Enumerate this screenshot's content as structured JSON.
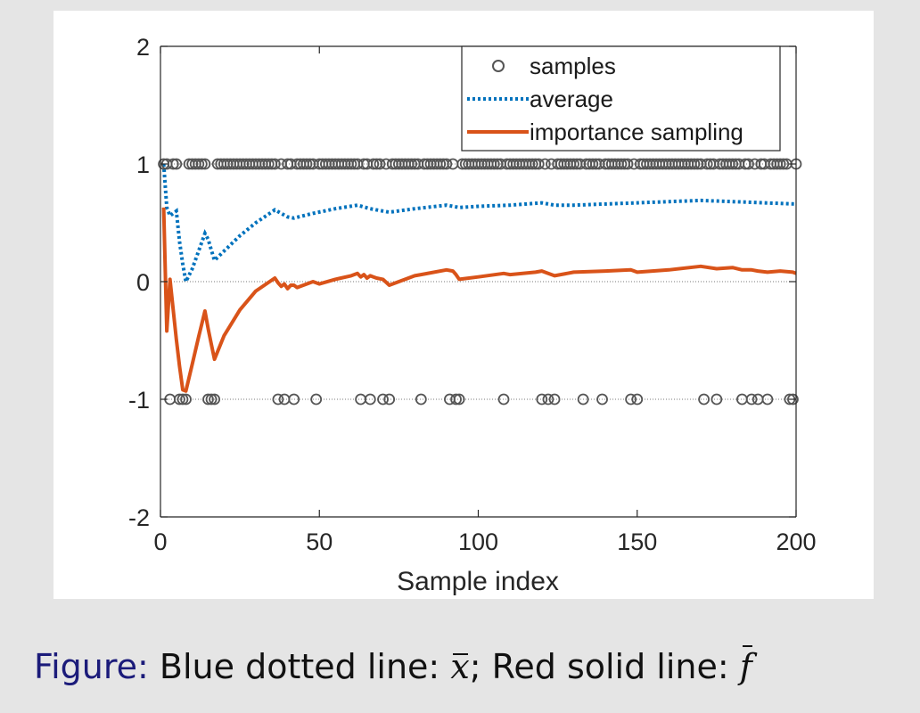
{
  "caption": {
    "prefix": "Figure:",
    "part1": "Blue dotted line:",
    "sym1": "x",
    "sep": ";",
    "part2": "Red solid line:",
    "sym2": "f"
  },
  "colors": {
    "samples": "#555555",
    "average": "#0072BD",
    "importance": "#D95319",
    "panel": "#ffffff",
    "background": "#e5e5e5",
    "caption_prefix": "#1b1b7a"
  },
  "chart_data": {
    "type": "line",
    "title": "",
    "xlabel": "Sample index",
    "ylabel": "",
    "xlim": [
      0,
      200
    ],
    "ylim": [
      -2,
      2
    ],
    "xticks": [
      0,
      50,
      100,
      150,
      200
    ],
    "yticks": [
      -2,
      -1,
      0,
      1,
      2
    ],
    "grid": false,
    "reference_lines_y": [
      -1,
      0,
      1
    ],
    "legend_position": "top-right",
    "legend": [
      "samples",
      "average",
      "importance sampling"
    ],
    "series": [
      {
        "name": "samples",
        "style": "markers",
        "neg_x": [
          3,
          6,
          7,
          8,
          15,
          16,
          17,
          37,
          39,
          42,
          49,
          63,
          66,
          70,
          72,
          82,
          91,
          93,
          94,
          108,
          120,
          122,
          124,
          133,
          139,
          148,
          150,
          171,
          175,
          183,
          186,
          188,
          191,
          198,
          199
        ],
        "y_high": 1,
        "y_low": -1,
        "n": 200
      },
      {
        "name": "average",
        "style": "dotted",
        "x": [
          1,
          2,
          3,
          4,
          5,
          6,
          7,
          8,
          10,
          12,
          14,
          15,
          16,
          17,
          20,
          25,
          30,
          36,
          40,
          42,
          48,
          55,
          62,
          66,
          70,
          72,
          80,
          90,
          94,
          100,
          110,
          120,
          124,
          130,
          140,
          150,
          160,
          170,
          180,
          190,
          200
        ],
        "y": [
          1.0,
          0.63,
          0.56,
          0.58,
          0.6,
          0.34,
          0.15,
          0.0,
          0.11,
          0.26,
          0.41,
          0.36,
          0.27,
          0.18,
          0.26,
          0.39,
          0.5,
          0.61,
          0.55,
          0.54,
          0.58,
          0.62,
          0.65,
          0.62,
          0.6,
          0.59,
          0.62,
          0.65,
          0.63,
          0.64,
          0.65,
          0.67,
          0.65,
          0.65,
          0.66,
          0.67,
          0.68,
          0.69,
          0.68,
          0.67,
          0.66
        ]
      },
      {
        "name": "importance sampling",
        "style": "solid",
        "x": [
          1,
          2,
          3,
          4,
          5,
          6,
          7,
          8,
          10,
          12,
          14,
          15,
          16,
          17,
          20,
          25,
          30,
          36,
          37,
          38,
          39,
          40,
          41,
          42,
          43,
          48,
          50,
          55,
          60,
          62,
          63,
          64,
          65,
          66,
          67,
          68,
          70,
          72,
          80,
          82,
          90,
          92,
          93,
          94,
          100,
          108,
          110,
          118,
          120,
          122,
          124,
          130,
          140,
          148,
          150,
          160,
          170,
          175,
          180,
          183,
          186,
          188,
          191,
          195,
          199,
          200
        ],
        "y": [
          0.63,
          -0.42,
          0.02,
          -0.24,
          -0.49,
          -0.72,
          -0.92,
          -0.93,
          -0.7,
          -0.47,
          -0.25,
          -0.4,
          -0.53,
          -0.66,
          -0.46,
          -0.24,
          -0.08,
          0.03,
          -0.01,
          -0.04,
          -0.02,
          -0.06,
          -0.03,
          -0.03,
          -0.05,
          0.0,
          -0.02,
          0.02,
          0.05,
          0.07,
          0.04,
          0.06,
          0.03,
          0.05,
          0.04,
          0.03,
          0.02,
          -0.03,
          0.05,
          0.06,
          0.1,
          0.09,
          0.06,
          0.02,
          0.04,
          0.07,
          0.06,
          0.08,
          0.09,
          0.07,
          0.05,
          0.08,
          0.09,
          0.1,
          0.08,
          0.1,
          0.13,
          0.11,
          0.12,
          0.1,
          0.1,
          0.09,
          0.08,
          0.09,
          0.08,
          0.07
        ]
      }
    ]
  }
}
